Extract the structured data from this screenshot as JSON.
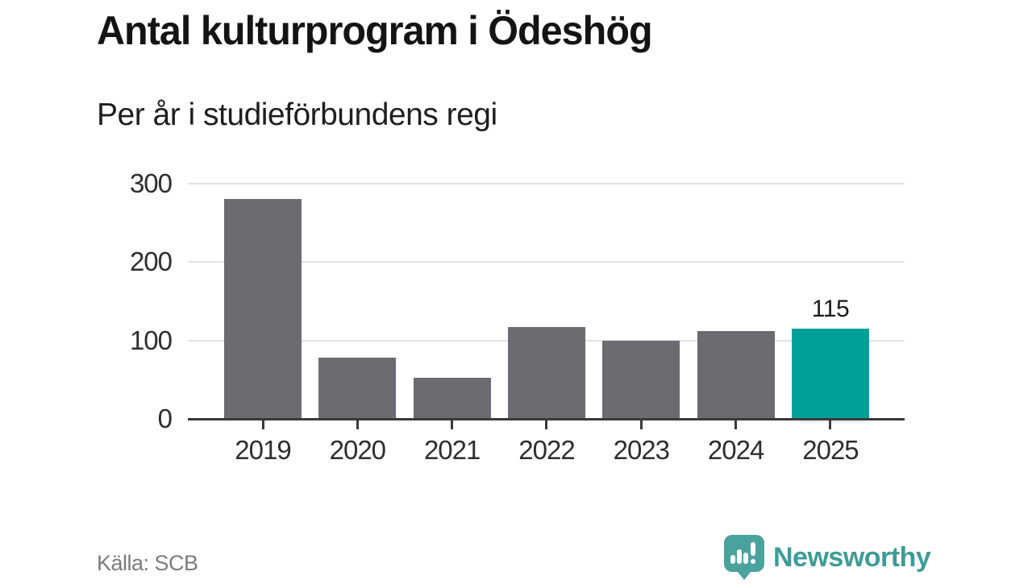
{
  "header": {
    "title": "Antal kulturprogram i Ödeshög",
    "subtitle": "Per år i studieförbundens regi"
  },
  "footer": {
    "source": "Källa: SCB"
  },
  "brand": {
    "name": "Newsworthy",
    "color": "#3d9c96",
    "icon": "newsworthy-speech-bubble-chart-icon",
    "icon_color": "#4aa29c"
  },
  "chart_data": {
    "type": "bar",
    "title": "Antal kulturprogram i Ödeshög",
    "subtitle": "Per år i studieförbundens regi",
    "categories": [
      "2019",
      "2020",
      "2021",
      "2022",
      "2023",
      "2024",
      "2025"
    ],
    "values": [
      280,
      78,
      52,
      117,
      100,
      112,
      115
    ],
    "value_labels": {
      "6": "115"
    },
    "highlight_index": 6,
    "bar_color": "#6d6a71",
    "highlight_color": "#00a098",
    "axis_color": "#3a3a3a",
    "gridline_color": "#e3e3e3",
    "xlabel": "",
    "ylabel": "",
    "ylim": [
      0,
      300
    ],
    "yticks": [
      0,
      100,
      200,
      300
    ],
    "grid": "horizontal-gridlines-at-100-200-300",
    "legend": "none",
    "source": "Källa: SCB"
  }
}
